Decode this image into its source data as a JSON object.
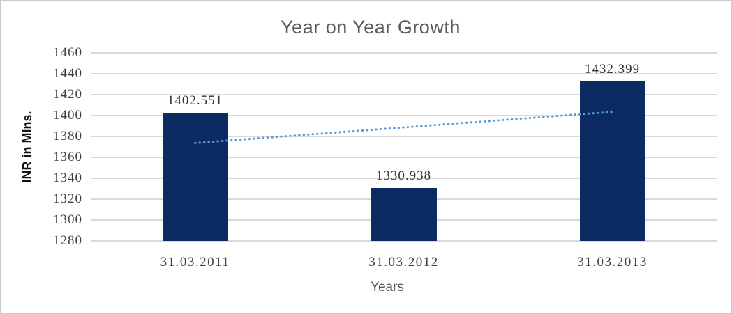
{
  "chart_data": {
    "type": "bar",
    "title": "Year on Year Growth",
    "xlabel": "Years",
    "ylabel": "INR in Mlns.",
    "categories": [
      "31.03.2011",
      "31.03.2012",
      "31.03.2013"
    ],
    "values": [
      1402.551,
      1330.938,
      1432.399
    ],
    "data_labels": [
      "1402.551",
      "1330.938",
      "1432.399"
    ],
    "ylim": [
      1280,
      1460
    ],
    "ytick_step": 20,
    "yticks": [
      1460,
      1440,
      1420,
      1400,
      1380,
      1360,
      1340,
      1320,
      1300,
      1280
    ],
    "grid": true,
    "legend": false,
    "trendline": {
      "type": "linear",
      "style": "dotted",
      "start_value": 1373.71,
      "end_value": 1403.55
    },
    "colors": {
      "bar": "#0d2b63",
      "trendline": "#5b9bd5",
      "gridline": "#d9d9d9",
      "title": "#595959",
      "axis_title": "#595959",
      "y_axis_title": "#111111",
      "tick_label": "#404040",
      "data_label": "#333333"
    }
  }
}
